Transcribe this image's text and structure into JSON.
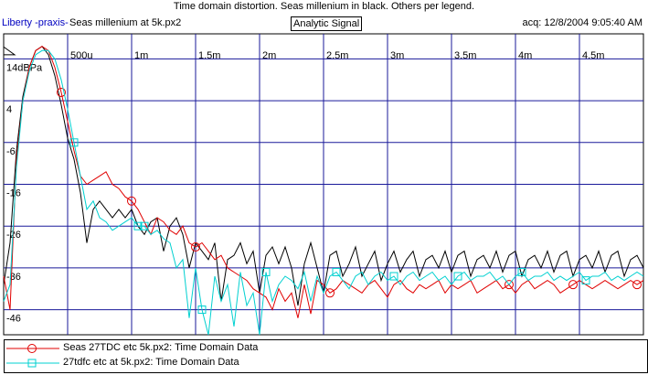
{
  "window": {
    "title": "Time domain distortion. Seas millenium in black. Others per legend."
  },
  "header": {
    "brand": "Liberty -praxis-",
    "file": "Seas millenium at 5k.px2",
    "tab": "Analytic Signal",
    "acq": "acq: 12/8/2004 9:05:40 AM"
  },
  "chart_data": {
    "type": "line",
    "title": "Time domain distortion. Seas millenium in black. Others per legend.",
    "xlabel": "",
    "ylabel": "",
    "xlim": [
      0,
      5.0
    ],
    "ylim": [
      -52,
      20
    ],
    "x_tick_labels": [
      "500u",
      "1m",
      "1.5m",
      "2m",
      "2.5m",
      "3m",
      "3.5m",
      "4m",
      "4.5m"
    ],
    "y_tick_labels": [
      "14dBPa",
      "4",
      "-6",
      "-16",
      "-26",
      "-36",
      "-46"
    ],
    "x_unit": "ms",
    "grid": true,
    "series": [
      {
        "name": "Seas millenium at 5k.px2",
        "color": "#000000",
        "x": [
          0.0,
          0.05,
          0.1,
          0.15,
          0.2,
          0.25,
          0.3,
          0.35,
          0.4,
          0.45,
          0.5,
          0.55,
          0.6,
          0.65,
          0.7,
          0.75,
          0.8,
          0.85,
          0.9,
          0.95,
          1.0,
          1.05,
          1.1,
          1.15,
          1.2,
          1.25,
          1.3,
          1.35,
          1.4,
          1.45,
          1.5,
          1.55,
          1.6,
          1.65,
          1.7,
          1.75,
          1.8,
          1.85,
          1.9,
          1.95,
          2.0,
          2.05,
          2.1,
          2.15,
          2.2,
          2.25,
          2.3,
          2.35,
          2.4,
          2.45,
          2.5,
          2.55,
          2.6,
          2.65,
          2.7,
          2.75,
          2.8,
          2.85,
          2.9,
          2.95,
          3.0,
          3.05,
          3.1,
          3.15,
          3.2,
          3.25,
          3.3,
          3.35,
          3.4,
          3.45,
          3.5,
          3.55,
          3.6,
          3.65,
          3.7,
          3.75,
          3.8,
          3.85,
          3.9,
          3.95,
          4.0,
          4.05,
          4.1,
          4.15,
          4.2,
          4.25,
          4.3,
          4.35,
          4.4,
          4.45,
          4.5,
          4.55,
          4.6,
          4.65,
          4.7,
          4.75,
          4.8,
          4.85,
          4.9,
          4.95,
          5.0
        ],
        "y": [
          -40,
          -30,
          -8,
          5,
          12,
          16,
          17,
          15,
          10,
          3,
          -5,
          -10,
          -18,
          -30,
          -22,
          -20,
          -22,
          -24,
          -22,
          -24,
          -22,
          -26,
          -28,
          -25,
          -24,
          -32,
          -26,
          -24,
          -28,
          -36,
          -30,
          -32,
          -34,
          -30,
          -44,
          -34,
          -33,
          -30,
          -35,
          -32,
          -42,
          -33,
          -31,
          -35,
          -31,
          -36,
          -45,
          -35,
          -30,
          -36,
          -42,
          -33,
          -32,
          -38,
          -35,
          -31,
          -38,
          -35,
          -32,
          -39,
          -35,
          -32,
          -37,
          -34,
          -32,
          -38,
          -34,
          -33,
          -36,
          -32,
          -37,
          -33,
          -32,
          -38,
          -34,
          -33,
          -36,
          -32,
          -37,
          -33,
          -32,
          -38,
          -34,
          -33,
          -36,
          -32,
          -37,
          -33,
          -32,
          -38,
          -34,
          -33,
          -36,
          -32,
          -37,
          -33,
          -32,
          -38,
          -34,
          -33,
          -36
        ]
      },
      {
        "name": "Seas 27TDC etc 5k.px2:  Time Domain Data",
        "color": "#e00000",
        "marker": "circle",
        "x": [
          0.0,
          0.05,
          0.1,
          0.15,
          0.2,
          0.25,
          0.3,
          0.35,
          0.4,
          0.45,
          0.5,
          0.55,
          0.6,
          0.65,
          0.7,
          0.75,
          0.8,
          0.85,
          0.9,
          0.95,
          1.0,
          1.05,
          1.1,
          1.15,
          1.2,
          1.25,
          1.3,
          1.35,
          1.4,
          1.45,
          1.5,
          1.55,
          1.6,
          1.65,
          1.7,
          1.75,
          1.8,
          1.85,
          1.9,
          1.95,
          2.0,
          2.05,
          2.1,
          2.15,
          2.2,
          2.25,
          2.3,
          2.35,
          2.4,
          2.45,
          2.5,
          2.55,
          2.6,
          2.65,
          2.7,
          2.75,
          2.8,
          2.85,
          2.9,
          2.95,
          3.0,
          3.05,
          3.1,
          3.15,
          3.2,
          3.25,
          3.3,
          3.35,
          3.4,
          3.45,
          3.5,
          3.55,
          3.6,
          3.65,
          3.7,
          3.75,
          3.8,
          3.85,
          3.9,
          3.95,
          4.0,
          4.05,
          4.1,
          4.15,
          4.2,
          4.25,
          4.3,
          4.35,
          4.4,
          4.45,
          4.5,
          4.55,
          4.6,
          4.65,
          4.7,
          4.75,
          4.8,
          4.85,
          4.9,
          4.95,
          5.0
        ],
        "y": [
          -38,
          -46,
          -10,
          4,
          12,
          16,
          17,
          16,
          12,
          6,
          -1,
          -8,
          -14,
          -16,
          -15,
          -14,
          -13,
          -16,
          -17,
          -19,
          -20,
          -22,
          -25,
          -28,
          -24,
          -25,
          -27,
          -28,
          -26,
          -30,
          -31,
          -30,
          -32,
          -34,
          -33,
          -36,
          -37,
          -38,
          -39,
          -41,
          -42,
          -43,
          -46,
          -41,
          -44,
          -42,
          -48,
          -40,
          -47,
          -39,
          -40,
          -42,
          -41,
          -39,
          -40,
          -41,
          -42,
          -40,
          -39,
          -41,
          -43,
          -40,
          -39,
          -41,
          -42,
          -40,
          -41,
          -40,
          -39,
          -42,
          -40,
          -41,
          -40,
          -39,
          -42,
          -41,
          -40,
          -39,
          -41,
          -40,
          -42,
          -40,
          -39,
          -41,
          -40,
          -39,
          -40,
          -42,
          -41,
          -40,
          -39,
          -40,
          -41,
          -40,
          -39,
          -40,
          -41,
          -40,
          -39,
          -40,
          -39
        ],
        "marker_x": [
          0.45,
          1.0,
          1.5,
          2.55,
          3.95,
          4.45,
          4.95
        ]
      },
      {
        "name": "27tdfc etc at 5k.px2:  Time Domain Data",
        "color": "#00d0d0",
        "marker": "square",
        "x": [
          0.0,
          0.05,
          0.1,
          0.15,
          0.2,
          0.25,
          0.3,
          0.35,
          0.4,
          0.45,
          0.5,
          0.55,
          0.6,
          0.65,
          0.7,
          0.75,
          0.8,
          0.85,
          0.9,
          0.95,
          1.0,
          1.05,
          1.1,
          1.15,
          1.2,
          1.25,
          1.3,
          1.35,
          1.4,
          1.45,
          1.5,
          1.55,
          1.6,
          1.65,
          1.7,
          1.75,
          1.8,
          1.85,
          1.9,
          1.95,
          2.0,
          2.05,
          2.1,
          2.15,
          2.2,
          2.25,
          2.3,
          2.35,
          2.4,
          2.45,
          2.5,
          2.55,
          2.6,
          2.65,
          2.7,
          2.75,
          2.8,
          2.85,
          2.9,
          2.95,
          3.0,
          3.05,
          3.1,
          3.15,
          3.2,
          3.25,
          3.3,
          3.35,
          3.4,
          3.45,
          3.5,
          3.55,
          3.6,
          3.65,
          3.7,
          3.75,
          3.8,
          3.85,
          3.9,
          3.95,
          4.0,
          4.05,
          4.1,
          4.15,
          4.2,
          4.25,
          4.3,
          4.35,
          4.4,
          4.45,
          4.5,
          4.55,
          4.6,
          4.65,
          4.7,
          4.75,
          4.8,
          4.85,
          4.9,
          4.95,
          5.0
        ],
        "y": [
          -44,
          -40,
          -12,
          4,
          11,
          15,
          16,
          16,
          14,
          9,
          2,
          -6,
          -14,
          -22,
          -20,
          -24,
          -25,
          -27,
          -26,
          -25,
          -24,
          -26,
          -26,
          -28,
          -27,
          -29,
          -30,
          -36,
          -34,
          -48,
          -36,
          -46,
          -52,
          -38,
          -44,
          -40,
          -50,
          -37,
          -45,
          -42,
          -52,
          -37,
          -44,
          -40,
          -38,
          -39,
          -41,
          -37,
          -44,
          -38,
          -42,
          -38,
          -37,
          -39,
          -41,
          -38,
          -37,
          -40,
          -38,
          -37,
          -39,
          -38,
          -40,
          -38,
          -37,
          -39,
          -38,
          -37,
          -39,
          -38,
          -40,
          -38,
          -37,
          -39,
          -38,
          -38,
          -37,
          -39,
          -38,
          -40,
          -38,
          -37,
          -39,
          -38,
          -38,
          -37,
          -39,
          -38,
          -39,
          -38,
          -37,
          -39,
          -38,
          -38,
          -37,
          -39,
          -38,
          -39,
          -38,
          -37,
          -38
        ],
        "marker_x": [
          0.55,
          1.05,
          1.1,
          1.55,
          2.05,
          2.6,
          3.05,
          3.55,
          4.05,
          4.55
        ]
      }
    ]
  }
}
